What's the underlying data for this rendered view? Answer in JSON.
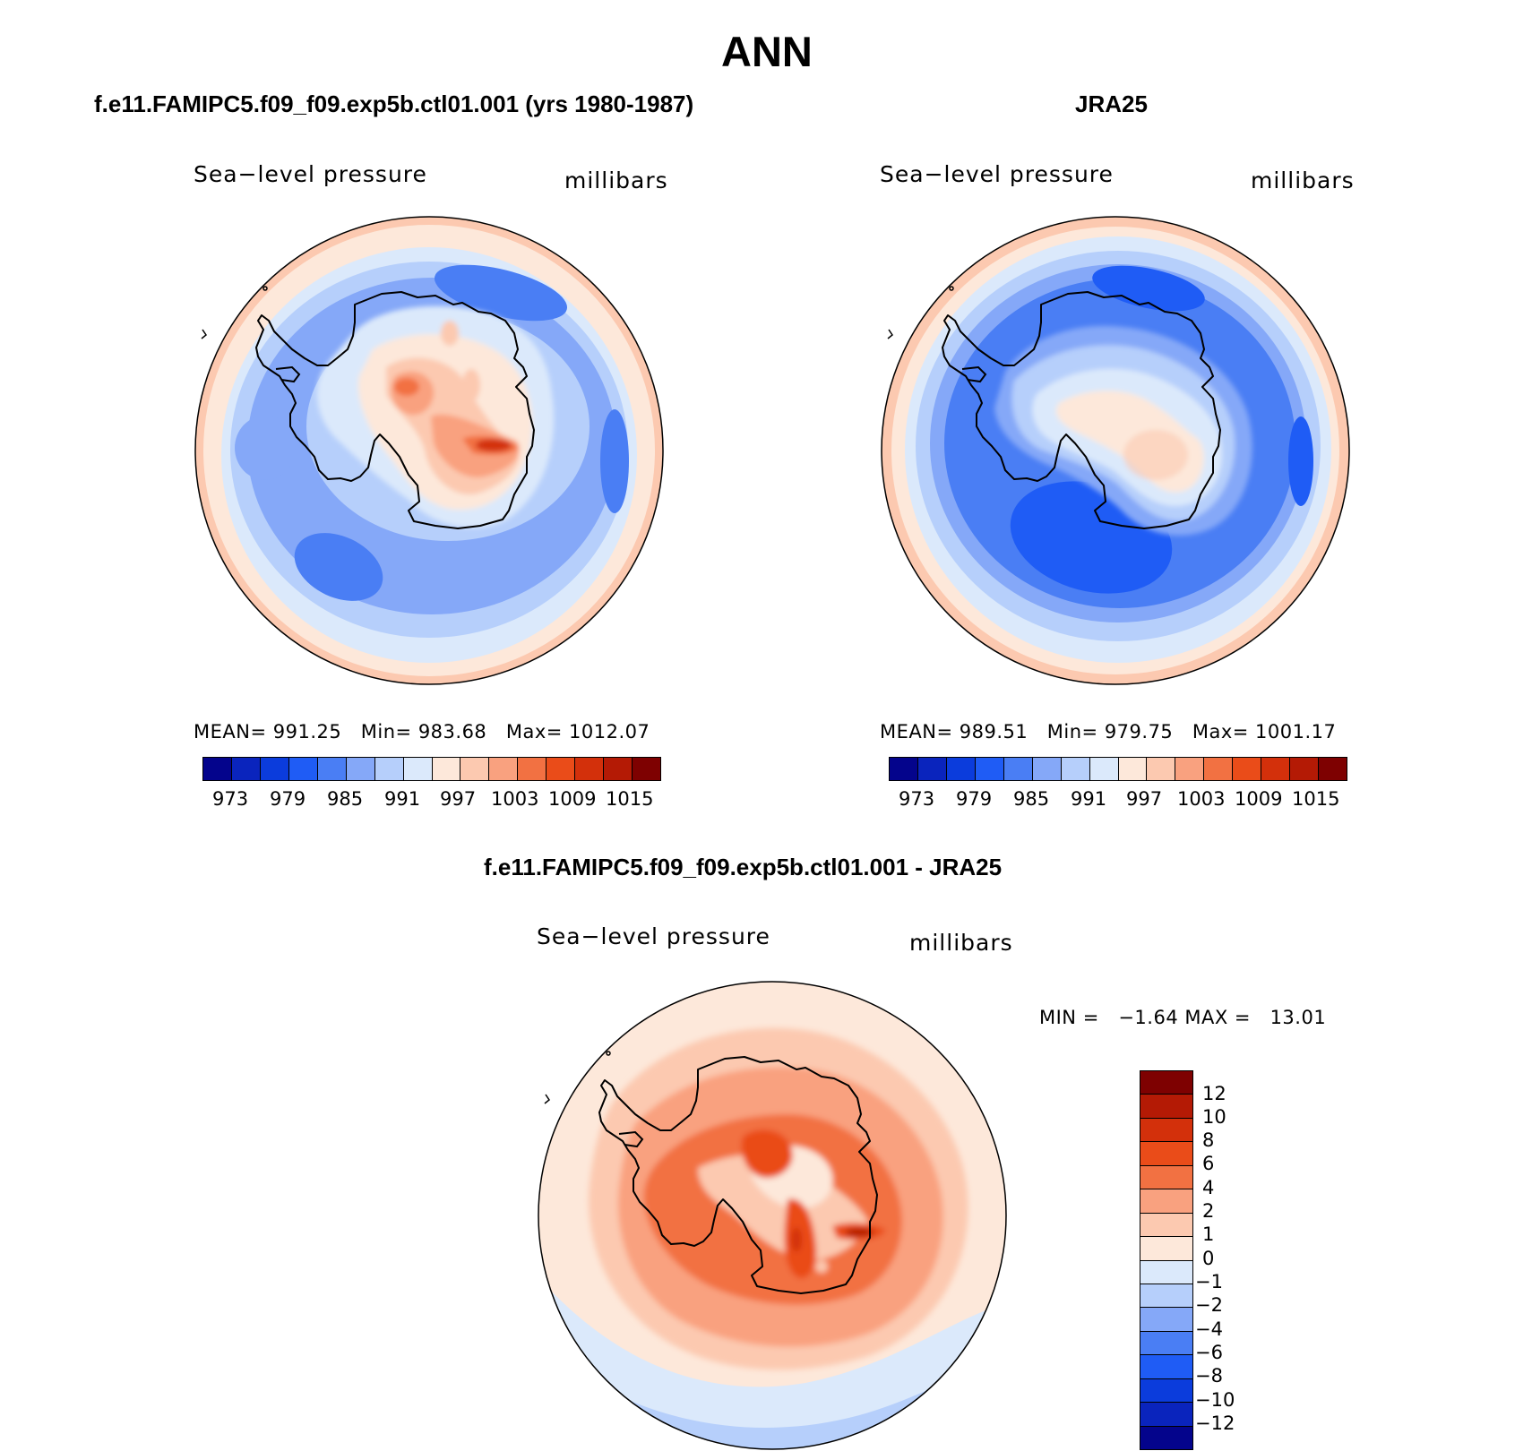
{
  "page_title": "ANN",
  "panels": [
    {
      "title": "f.e11.FAMIPC5.f09_f09.exp5b.ctl01.001 (yrs 1980-1987)",
      "variable": "Sea−level pressure",
      "units": "millibars",
      "stats": {
        "mean_label": "MEAN=",
        "mean": "991.25",
        "min_label": "Min=",
        "min": "983.68",
        "max_label": "Max=",
        "max": "1012.07"
      }
    },
    {
      "title": "JRA25",
      "variable": "Sea−level pressure",
      "units": "millibars",
      "stats": {
        "mean_label": "MEAN=",
        "mean": "989.51",
        "min_label": "Min=",
        "min": "979.75",
        "max_label": "Max=",
        "max": "1001.17"
      }
    },
    {
      "title": "f.e11.FAMIPC5.f09_f09.exp5b.ctl01.001 - JRA25",
      "variable": "Sea−level pressure",
      "units": "millibars",
      "stats": {
        "min_label": "MIN =",
        "min": "−1.64",
        "max_label": "MAX =",
        "max": "13.01"
      }
    }
  ],
  "colorbar_abs": {
    "colors": [
      "#04048c",
      "#0a24bd",
      "#0b3cdc",
      "#1f5cf5",
      "#4a7ef4",
      "#85a8f8",
      "#b6cffb",
      "#dbe9fb",
      "#fde8da",
      "#fcc9b0",
      "#f9a17f",
      "#f27142",
      "#ea4c19",
      "#d3300b",
      "#b41a05",
      "#7e0101"
    ],
    "ticks": [
      "973",
      "979",
      "985",
      "991",
      "997",
      "1003",
      "1009",
      "1015"
    ]
  },
  "colorbar_diff": {
    "colors": [
      "#7e0101",
      "#b41a05",
      "#d3300b",
      "#ea4c19",
      "#f27142",
      "#f9a17f",
      "#fcc9b0",
      "#fde8da",
      "#dbe9fb",
      "#b6cffb",
      "#85a8f8",
      "#4a7ef4",
      "#1f5cf5",
      "#0b3cdc",
      "#0a24bd",
      "#04048c"
    ],
    "ticks": [
      "12",
      "10",
      "8",
      "6",
      "4",
      "2",
      "1",
      "0",
      "−1",
      "−2",
      "−4",
      "−6",
      "−8",
      "−10",
      "−12"
    ]
  },
  "map_data": {
    "projection": "south polar stereographic",
    "region": "Antarctica / Southern Ocean",
    "field": "Sea-level pressure (annual mean)",
    "coastline_color": "#000000"
  }
}
